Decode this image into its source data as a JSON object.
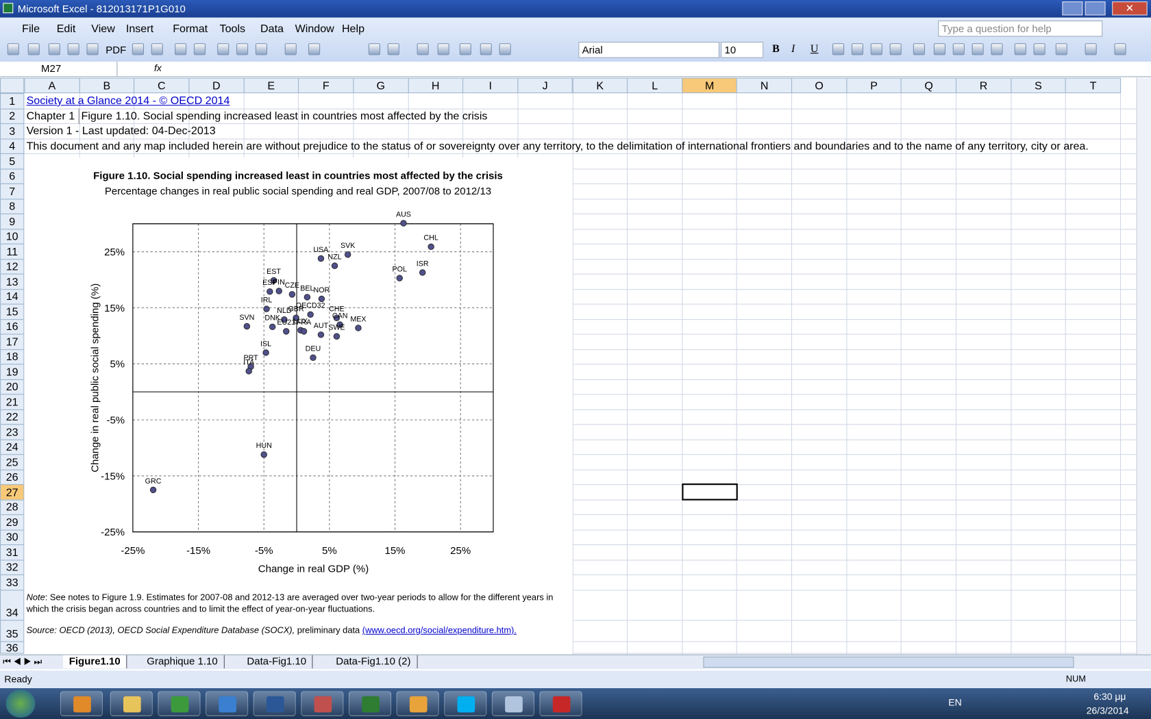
{
  "window": {
    "title": "Microsoft Excel - 812013171P1G010"
  },
  "menu": [
    "File",
    "Edit",
    "View",
    "Insert",
    "Format",
    "Tools",
    "Data",
    "Window",
    "Help"
  ],
  "help_box": "Type a question for help",
  "toolbar": {
    "pdf": "PDF",
    "font": "Arial",
    "size": "10",
    "format": [
      "B",
      "I",
      "U"
    ]
  },
  "formula_bar": {
    "name_box": "M27",
    "fx": "fx"
  },
  "columns": [
    "A",
    "B",
    "C",
    "D",
    "E",
    "F",
    "G",
    "H",
    "I",
    "J",
    "K",
    "L",
    "M",
    "N",
    "O",
    "P",
    "Q",
    "R",
    "S",
    "T"
  ],
  "rows": [
    1,
    2,
    3,
    4,
    5,
    6,
    7,
    8,
    9,
    10,
    11,
    12,
    13,
    14,
    15,
    16,
    17,
    18,
    19,
    20,
    21,
    22,
    23,
    24,
    25,
    26,
    27,
    28,
    29,
    30,
    31,
    32,
    33,
    34,
    35,
    36
  ],
  "cells": {
    "A1": "Society at a Glance 2014 - © OECD 2014",
    "A2": "Chapter 1",
    "B2": "Figure 1.10. Social spending increased least in countries most affected by the crisis",
    "A3": "Version 1 - Last updated: 04-Dec-2013",
    "A4": "This document and any map included herein are without prejudice to the status of or sovereignty over any territory, to the delimitation of international frontiers and boundaries and to the name of any territory, city or area."
  },
  "chart_data": {
    "type": "scatter",
    "title": "Figure 1.10. Social spending increased least in countries most affected by the crisis",
    "subtitle": "Percentage changes in real public social spending and real GDP, 2007/08 to 2012/13",
    "x_label": "Change in real GDP (%)",
    "y_label": "Change in real public social spending (%)",
    "color": "#50508a",
    "labels": [
      "AUS",
      "CHL",
      "ISR",
      "POL",
      "USA",
      "SVK",
      "NZL",
      "EST",
      "ESP",
      "FIN",
      "CZE",
      "BEL",
      "NOR",
      "IRL",
      "OECD32",
      "GBR",
      "NLD",
      "DNK",
      "EU21",
      "LUX",
      "FRA",
      "AUT",
      "CHE",
      "CAN",
      "MEX",
      "SWE",
      "DEU",
      "SVN",
      "ISL",
      "PRT",
      "ITA",
      "HUN",
      "GRC"
    ],
    "x": [
      16.3,
      20.5,
      19.2,
      15.7,
      3.7,
      7.8,
      5.8,
      -3.5,
      -4.1,
      -2.7,
      -0.7,
      1.6,
      3.8,
      -4.6,
      2.1,
      -0.1,
      -1.9,
      -3.7,
      -1.6,
      0.6,
      1.1,
      3.7,
      6.1,
      6.6,
      9.4,
      6.1,
      2.5,
      -7.6,
      -4.7,
      -7.0,
      -7.3,
      -5.0,
      -21.9
    ],
    "values": [
      30.1,
      25.9,
      21.3,
      20.3,
      23.8,
      24.5,
      22.5,
      19.9,
      17.9,
      18.0,
      17.4,
      16.9,
      16.6,
      14.8,
      13.8,
      13.2,
      12.9,
      11.6,
      10.8,
      11.0,
      10.8,
      10.2,
      13.2,
      12.0,
      11.4,
      9.9,
      6.1,
      11.7,
      7.0,
      4.5,
      3.7,
      -11.2,
      -17.5
    ],
    "xlim": [
      -25,
      30
    ],
    "ylim": [
      -25,
      30
    ],
    "xticks": [
      {
        "value": -25,
        "label": "-25%"
      },
      {
        "value": -15,
        "label": "-15%"
      },
      {
        "value": -5,
        "label": "-5%"
      },
      {
        "value": 5,
        "label": "5%"
      },
      {
        "value": 15,
        "label": "15%"
      },
      {
        "value": 25,
        "label": "25%"
      }
    ],
    "yticks": [
      {
        "value": -25,
        "label": "-25%"
      },
      {
        "value": -15,
        "label": "-15%"
      },
      {
        "value": -5,
        "label": "-5%"
      },
      {
        "value": 5,
        "label": "5%"
      },
      {
        "value": 15,
        "label": "15%"
      },
      {
        "value": 25,
        "label": "25%"
      }
    ],
    "grid": true
  },
  "note": {
    "label": "Note",
    "text": ": See notes to Figure 1.9. Estimates for 2007-08 and 2012-13 are averaged over two-year periods to allow for the different years in which the crisis began across countries and to limit the effect of year-on-year fluctuations."
  },
  "source": {
    "text": "Source: OECD (2013), OECD Social Expenditure Database (SOCX),",
    "plain": " preliminary data ",
    "link": "(www.oecd.org/social/expenditure.htm)."
  },
  "sheet_tabs": [
    "Figure1.10",
    "Graphique 1.10",
    "Data-Fig1.10",
    "Data-Fig1.10 (2)"
  ],
  "status": {
    "ready": "Ready",
    "num": "NUM"
  },
  "taskbar": {
    "lang": "EN",
    "time": "6:30 μμ",
    "date": "26/3/2014"
  }
}
